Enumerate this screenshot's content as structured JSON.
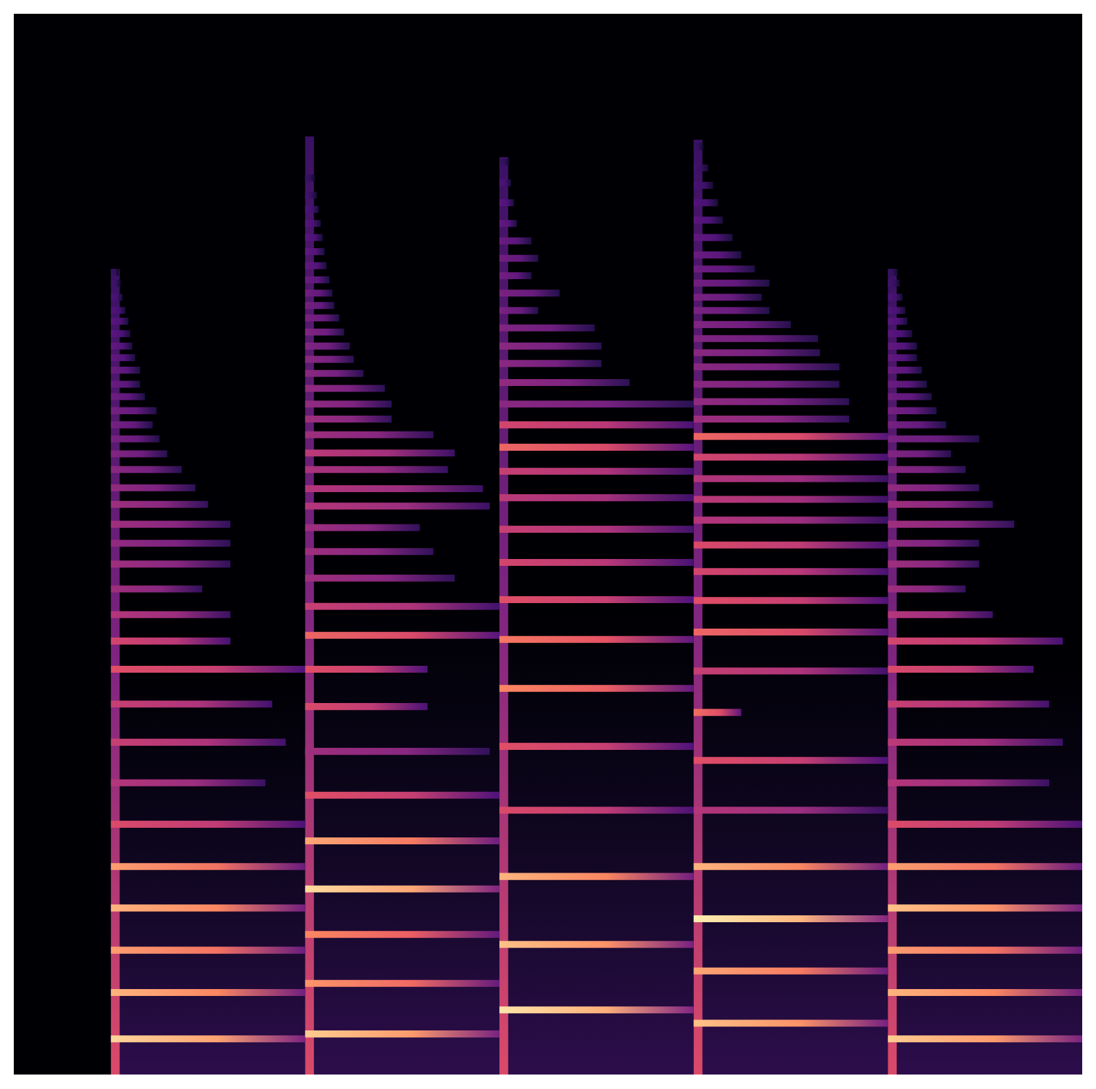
{
  "chart_data": {
    "type": "heatmap",
    "xlim": [
      0,
      11
    ],
    "ylim": [
      0,
      128
    ],
    "tick_labels": false,
    "grid": false,
    "level_range": [
      0,
      1
    ],
    "notes": [
      {
        "start": 1.0,
        "end": 3.0,
        "top": 97.2,
        "harmonics": [
          [
            4.3,
            3.0,
            0.92
          ],
          [
            9.9,
            3.0,
            0.85
          ],
          [
            15.0,
            3.0,
            0.8
          ],
          [
            20.1,
            3.0,
            0.85
          ],
          [
            25.1,
            3.0,
            0.8
          ],
          [
            30.2,
            3.0,
            0.6
          ],
          [
            35.2,
            2.59,
            0.5
          ],
          [
            40.1,
            2.8,
            0.55
          ],
          [
            44.7,
            2.66,
            0.55
          ],
          [
            48.9,
            3.0,
            0.62
          ],
          [
            52.3,
            2.23,
            0.58
          ],
          [
            55.5,
            2.23,
            0.5
          ],
          [
            58.6,
            1.94,
            0.45
          ],
          [
            61.6,
            2.23,
            0.45
          ],
          [
            64.1,
            2.23,
            0.42
          ],
          [
            66.4,
            2.23,
            0.45
          ],
          [
            68.8,
            2.0,
            0.45
          ],
          [
            70.8,
            1.87,
            0.42
          ],
          [
            73.0,
            1.73,
            0.4
          ],
          [
            74.9,
            1.58,
            0.38
          ],
          [
            76.7,
            1.5,
            0.36
          ],
          [
            78.4,
            1.43,
            0.35
          ],
          [
            80.1,
            1.47,
            0.35
          ],
          [
            81.8,
            1.35,
            0.33
          ],
          [
            83.3,
            1.3,
            0.32
          ],
          [
            85.0,
            1.3,
            0.32
          ],
          [
            86.5,
            1.25,
            0.3
          ],
          [
            87.9,
            1.22,
            0.3
          ],
          [
            89.4,
            1.2,
            0.28
          ],
          [
            90.9,
            1.18,
            0.28
          ],
          [
            92.2,
            1.15,
            0.26
          ],
          [
            93.8,
            1.12,
            0.25
          ],
          [
            95.5,
            1.1,
            0.22
          ],
          [
            96.8,
            1.08,
            0.2
          ]
        ]
      },
      {
        "start": 3.0,
        "end": 5.0,
        "top": 113.2,
        "harmonics": [
          [
            4.9,
            5.0,
            0.9
          ],
          [
            11.0,
            5.0,
            0.78
          ],
          [
            16.9,
            5.0,
            0.75
          ],
          [
            22.4,
            5.0,
            0.93
          ],
          [
            28.2,
            5.0,
            0.82
          ],
          [
            33.7,
            5.0,
            0.62
          ],
          [
            39.0,
            4.9,
            0.45
          ],
          [
            44.4,
            4.26,
            0.6
          ],
          [
            48.9,
            4.26,
            0.62
          ],
          [
            53.0,
            5.0,
            0.68
          ],
          [
            56.5,
            5.0,
            0.55
          ],
          [
            59.9,
            4.54,
            0.45
          ],
          [
            63.1,
            4.32,
            0.45
          ],
          [
            66.0,
            4.18,
            0.45
          ],
          [
            68.6,
            4.9,
            0.5
          ],
          [
            70.7,
            4.83,
            0.5
          ],
          [
            73.0,
            4.47,
            0.48
          ],
          [
            75.0,
            4.54,
            0.52
          ],
          [
            77.2,
            4.32,
            0.45
          ],
          [
            79.1,
            3.89,
            0.45
          ],
          [
            80.9,
            3.89,
            0.42
          ],
          [
            82.8,
            3.82,
            0.42
          ],
          [
            84.6,
            3.6,
            0.4
          ],
          [
            86.3,
            3.5,
            0.4
          ],
          [
            87.9,
            3.46,
            0.38
          ],
          [
            89.6,
            3.4,
            0.38
          ],
          [
            91.3,
            3.35,
            0.36
          ],
          [
            92.8,
            3.3,
            0.35
          ],
          [
            94.3,
            3.28,
            0.34
          ],
          [
            95.9,
            3.25,
            0.32
          ],
          [
            97.6,
            3.22,
            0.3
          ],
          [
            99.3,
            3.2,
            0.3
          ],
          [
            101.0,
            3.18,
            0.28
          ],
          [
            102.7,
            3.16,
            0.27
          ],
          [
            104.4,
            3.14,
            0.25
          ],
          [
            106.1,
            3.12,
            0.22
          ],
          [
            108.2,
            3.1,
            0.2
          ]
        ]
      },
      {
        "start": 5.0,
        "end": 7.0,
        "top": 110.7,
        "harmonics": [
          [
            7.8,
            7.0,
            0.95
          ],
          [
            15.7,
            7.0,
            0.88
          ],
          [
            23.9,
            7.0,
            0.85
          ],
          [
            31.9,
            7.0,
            0.6
          ],
          [
            39.6,
            7.0,
            0.62
          ],
          [
            46.6,
            7.0,
            0.75
          ],
          [
            52.5,
            7.0,
            0.72
          ],
          [
            57.3,
            7.0,
            0.62
          ],
          [
            61.8,
            7.0,
            0.58
          ],
          [
            65.8,
            7.0,
            0.55
          ],
          [
            69.6,
            7.0,
            0.52
          ],
          [
            72.8,
            7.0,
            0.55
          ],
          [
            75.7,
            7.0,
            0.68
          ],
          [
            78.4,
            7.0,
            0.58
          ],
          [
            80.9,
            7.0,
            0.4
          ],
          [
            83.5,
            6.34,
            0.42
          ],
          [
            85.8,
            6.05,
            0.4
          ],
          [
            87.9,
            6.05,
            0.4
          ],
          [
            90.1,
            5.98,
            0.38
          ],
          [
            92.2,
            5.4,
            0.36
          ],
          [
            94.3,
            5.62,
            0.36
          ],
          [
            96.4,
            5.33,
            0.34
          ],
          [
            98.5,
            5.4,
            0.34
          ],
          [
            100.6,
            5.33,
            0.32
          ],
          [
            102.7,
            5.18,
            0.3
          ],
          [
            105.2,
            5.15,
            0.28
          ],
          [
            107.6,
            5.12,
            0.25
          ],
          [
            110.1,
            5.1,
            0.2
          ]
        ]
      },
      {
        "start": 7.0,
        "end": 9.0,
        "top": 112.8,
        "harmonics": [
          [
            6.2,
            9.0,
            0.88
          ],
          [
            12.5,
            9.0,
            0.82
          ],
          [
            18.8,
            9.0,
            0.97
          ],
          [
            25.1,
            9.0,
            0.85
          ],
          [
            31.9,
            9.0,
            0.5
          ],
          [
            37.9,
            9.0,
            0.62
          ],
          [
            43.7,
            7.49,
            0.7
          ],
          [
            48.7,
            9.0,
            0.55
          ],
          [
            53.4,
            9.0,
            0.68
          ],
          [
            57.2,
            9.0,
            0.62
          ],
          [
            60.7,
            9.0,
            0.58
          ],
          [
            63.9,
            9.0,
            0.6
          ],
          [
            66.9,
            9.0,
            0.5
          ],
          [
            69.4,
            9.0,
            0.52
          ],
          [
            71.9,
            9.0,
            0.5
          ],
          [
            74.5,
            9.0,
            0.58
          ],
          [
            77.0,
            9.0,
            0.68
          ],
          [
            79.1,
            8.6,
            0.45
          ],
          [
            81.2,
            8.6,
            0.42
          ],
          [
            83.3,
            8.5,
            0.4
          ],
          [
            85.4,
            8.5,
            0.4
          ],
          [
            87.1,
            8.3,
            0.4
          ],
          [
            88.8,
            8.28,
            0.38
          ],
          [
            90.5,
            8.0,
            0.38
          ],
          [
            92.2,
            7.78,
            0.36
          ],
          [
            93.8,
            7.7,
            0.36
          ],
          [
            95.5,
            7.78,
            0.34
          ],
          [
            97.2,
            7.63,
            0.33
          ],
          [
            98.9,
            7.49,
            0.32
          ],
          [
            101.0,
            7.4,
            0.3
          ],
          [
            103.1,
            7.3,
            0.28
          ],
          [
            105.2,
            7.25,
            0.26
          ],
          [
            107.3,
            7.2,
            0.24
          ],
          [
            109.4,
            7.15,
            0.22
          ],
          [
            112.0,
            7.1,
            0.2
          ]
        ]
      },
      {
        "start": 9.0,
        "end": 11.0,
        "top": 97.2,
        "harmonics": [
          [
            4.3,
            11.0,
            0.9
          ],
          [
            9.9,
            11.0,
            0.85
          ],
          [
            15.0,
            11.0,
            0.8
          ],
          [
            20.1,
            11.0,
            0.88
          ],
          [
            25.1,
            11.0,
            0.8
          ],
          [
            30.2,
            11.0,
            0.6
          ],
          [
            35.2,
            10.66,
            0.5
          ],
          [
            40.1,
            10.8,
            0.52
          ],
          [
            44.7,
            10.66,
            0.55
          ],
          [
            48.9,
            10.5,
            0.6
          ],
          [
            52.3,
            10.8,
            0.58
          ],
          [
            55.5,
            10.08,
            0.5
          ],
          [
            58.6,
            9.8,
            0.45
          ],
          [
            61.6,
            9.94,
            0.45
          ],
          [
            64.1,
            9.94,
            0.42
          ],
          [
            66.4,
            10.3,
            0.45
          ],
          [
            68.8,
            10.08,
            0.45
          ],
          [
            70.8,
            9.94,
            0.42
          ],
          [
            73.0,
            9.8,
            0.4
          ],
          [
            74.9,
            9.65,
            0.38
          ],
          [
            76.7,
            9.94,
            0.36
          ],
          [
            78.4,
            9.6,
            0.35
          ],
          [
            80.1,
            9.5,
            0.35
          ],
          [
            81.8,
            9.45,
            0.33
          ],
          [
            83.3,
            9.4,
            0.32
          ],
          [
            85.0,
            9.35,
            0.32
          ],
          [
            86.5,
            9.3,
            0.3
          ],
          [
            87.9,
            9.3,
            0.3
          ],
          [
            89.4,
            9.25,
            0.28
          ],
          [
            90.9,
            9.2,
            0.28
          ],
          [
            92.2,
            9.18,
            0.26
          ],
          [
            93.8,
            9.15,
            0.25
          ],
          [
            95.5,
            9.12,
            0.22
          ],
          [
            96.8,
            9.1,
            0.2
          ]
        ]
      }
    ]
  }
}
